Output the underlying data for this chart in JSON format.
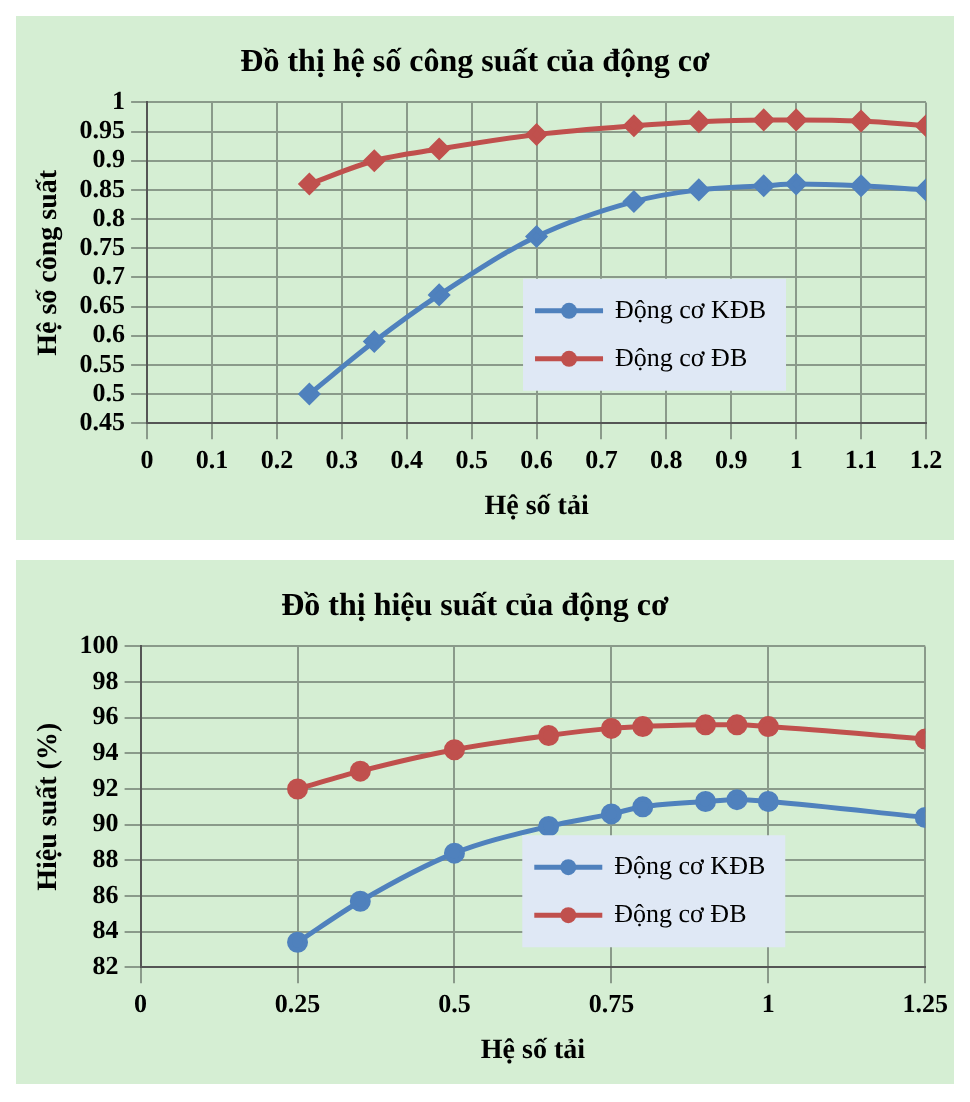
{
  "chart_data": [
    {
      "type": "line",
      "title": "Đồ thị hệ số công suất của động cơ",
      "xlabel": "Hệ số tải",
      "ylabel": "Hệ số công suất",
      "xlim": [
        0,
        1.2
      ],
      "xticks": [
        0,
        0.1,
        0.2,
        0.3,
        0.4,
        0.5,
        0.6,
        0.7,
        0.8,
        0.9,
        1,
        1.1,
        1.2
      ],
      "ylim": [
        0.45,
        1
      ],
      "yticks": [
        0.45,
        0.5,
        0.55,
        0.6,
        0.65,
        0.7,
        0.75,
        0.8,
        0.85,
        0.9,
        0.95,
        1
      ],
      "grid": true,
      "legend": "right",
      "marker": "diamond",
      "x": [
        0.25,
        0.35,
        0.45,
        0.6,
        0.75,
        0.85,
        0.95,
        1,
        1.1,
        1.2
      ],
      "series": [
        {
          "name": "Động cơ KĐB",
          "color": "#4f81bd",
          "values": [
            0.5,
            0.59,
            0.67,
            0.77,
            0.83,
            0.85,
            0.857,
            0.86,
            0.857,
            0.85
          ]
        },
        {
          "name": "Động cơ ĐB",
          "color": "#c0504d",
          "values": [
            0.86,
            0.9,
            0.92,
            0.945,
            0.96,
            0.967,
            0.97,
            0.97,
            0.968,
            0.96
          ]
        }
      ]
    },
    {
      "type": "line",
      "title": "Đồ thị hiệu suất của động cơ",
      "xlabel": "Hệ số tải",
      "ylabel": "Hiệu suất (%)",
      "xlim": [
        0,
        1.25
      ],
      "xticks": [
        0,
        0.25,
        0.5,
        0.75,
        1,
        1.25
      ],
      "ylim": [
        82,
        100
      ],
      "yticks": [
        82,
        84,
        86,
        88,
        90,
        92,
        94,
        96,
        98,
        100
      ],
      "grid": true,
      "legend": "bottom right",
      "marker": "circle",
      "x": [
        0.25,
        0.35,
        0.5,
        0.65,
        0.75,
        0.8,
        0.9,
        0.95,
        1,
        1.25
      ],
      "series": [
        {
          "name": "Động cơ KĐB",
          "color": "#4f81bd",
          "values": [
            83.4,
            85.7,
            88.4,
            89.9,
            90.6,
            91,
            91.3,
            91.4,
            91.3,
            90.4
          ]
        },
        {
          "name": "Động cơ ĐB",
          "color": "#c0504d",
          "values": [
            92,
            93,
            94.2,
            95,
            95.4,
            95.5,
            95.6,
            95.6,
            95.5,
            94.8
          ]
        }
      ]
    }
  ]
}
